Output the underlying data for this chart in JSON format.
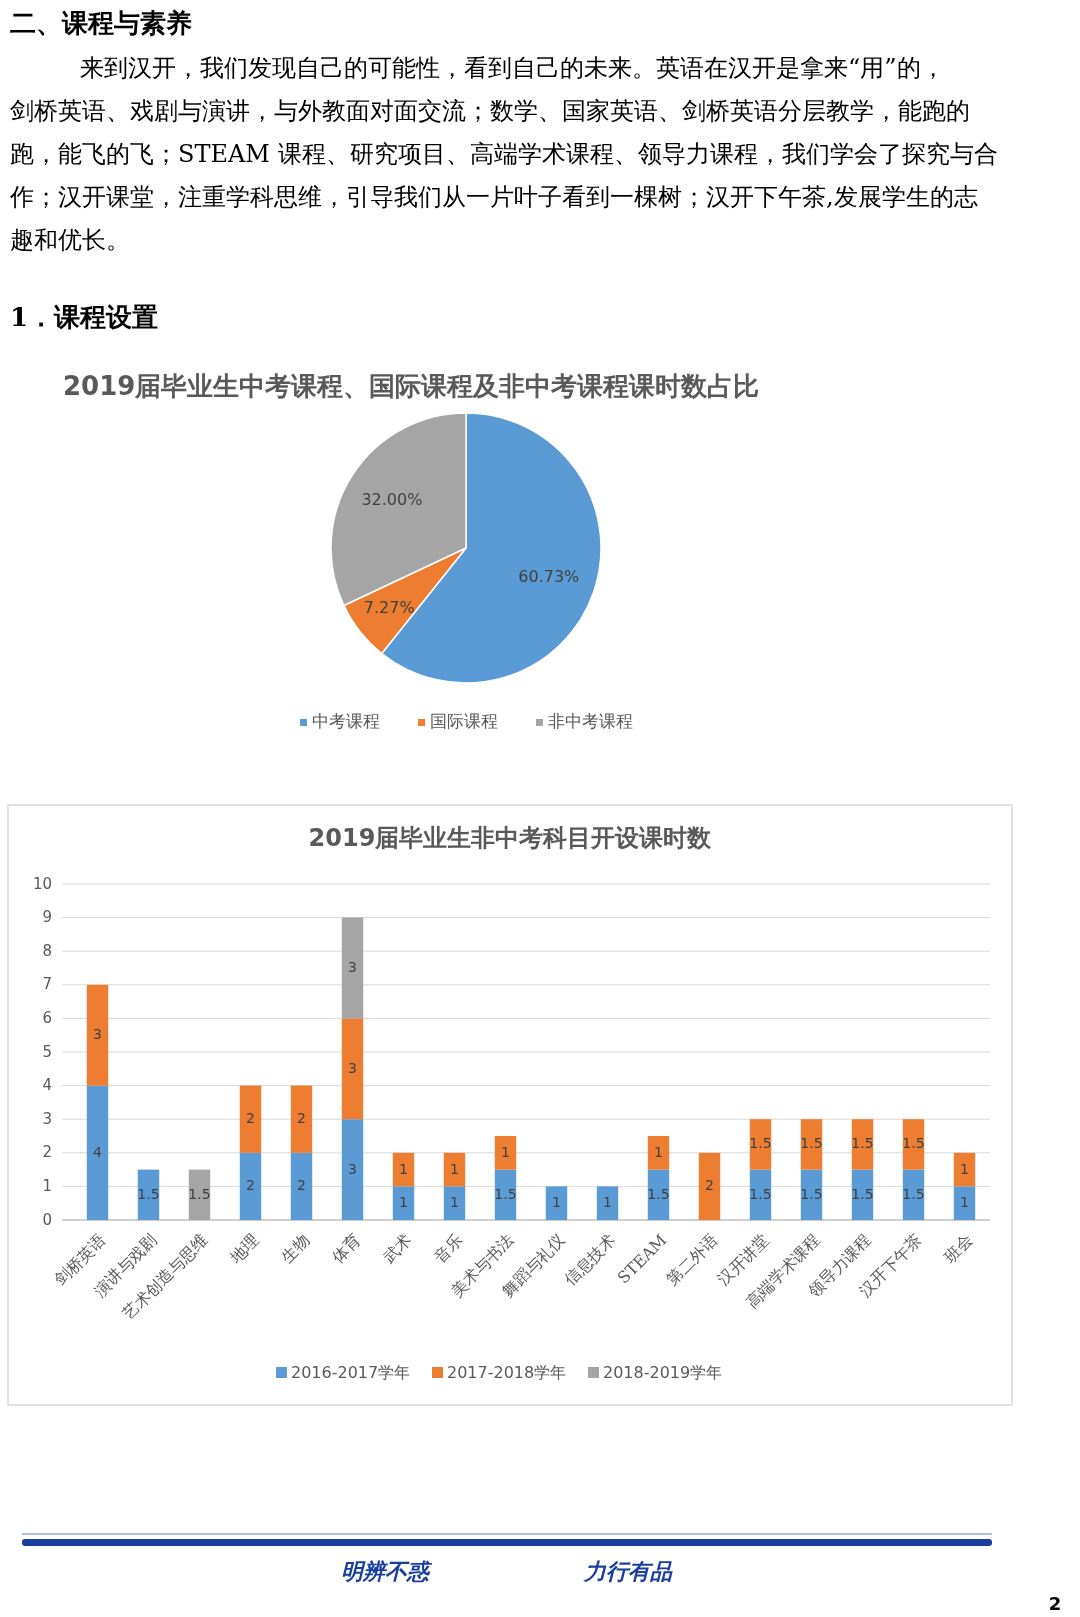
{
  "chart_data": [
    {
      "type": "pie",
      "title": "2019届毕业生中考课程、国际课程及非中考课程课时数占比",
      "categories": [
        "中考课程",
        "国际课程",
        "非中考课程"
      ],
      "values": [
        60.73,
        7.27,
        32.0
      ],
      "colors": [
        "#5b9bd5",
        "#ed7d31",
        "#a5a5a5"
      ],
      "value_labels": [
        "60.73%",
        "7.27%",
        "32.00%"
      ],
      "legend": "bottom",
      "annotations": [
        "二、课程与素养",
        "来到汉开，我们发现自己的可能性，看到自己的未来。英语在汉开是拿来“用”的，剑桥英语、戏剧与演讲，与外教面对面交流；数学、国家英语、剑桥英语分层教学，能跑的跑，能飞的飞；STEAM 课程、研究项目、高端学术课程、领导力课程，我们学会了探究与合作；汉开课堂，注重学科思维，引导我们从一片叶子看到一棵树；汉开下午茶,发展学生的志趣和优长。",
        "1．课程设置"
      ]
    },
    {
      "type": "bar",
      "stacked": true,
      "title": "2019届毕业生非中考科目开设课时数",
      "categories": [
        "剑桥英语",
        "演讲与戏剧",
        "艺术创造与思维",
        "地理",
        "生物",
        "体育",
        "武术",
        "音乐",
        "美术与书法",
        "舞蹈与礼仪",
        "信息技术",
        "STEAM",
        "第二外语",
        "汉开讲堂",
        "高端学术课程",
        "领导力课程",
        "汉开下午茶",
        "班会"
      ],
      "series": [
        {
          "name": "2016-2017学年",
          "color": "#5b9bd5",
          "values": [
            4,
            1.5,
            null,
            2,
            2,
            3,
            1,
            1,
            1.5,
            1,
            1,
            1.5,
            null,
            1.5,
            1.5,
            1.5,
            1.5,
            1
          ]
        },
        {
          "name": "2017-2018学年",
          "color": "#ed7d31",
          "values": [
            3,
            null,
            null,
            2,
            2,
            3,
            1,
            1,
            1,
            null,
            null,
            1,
            2,
            1.5,
            1.5,
            1.5,
            1.5,
            1
          ]
        },
        {
          "name": "2018-2019学年",
          "color": "#a5a5a5",
          "values": [
            null,
            null,
            1.5,
            null,
            null,
            3,
            null,
            null,
            null,
            null,
            null,
            null,
            null,
            null,
            null,
            null,
            null,
            null
          ]
        }
      ],
      "ylim": [
        0,
        10
      ],
      "yticks": [
        0,
        1,
        2,
        3,
        4,
        5,
        6,
        7,
        8,
        9,
        10
      ],
      "grid": "y",
      "legend": "bottom",
      "data_labels": true,
      "annotations": [
        "明辨不惑",
        "力行有品",
        "2"
      ]
    }
  ]
}
